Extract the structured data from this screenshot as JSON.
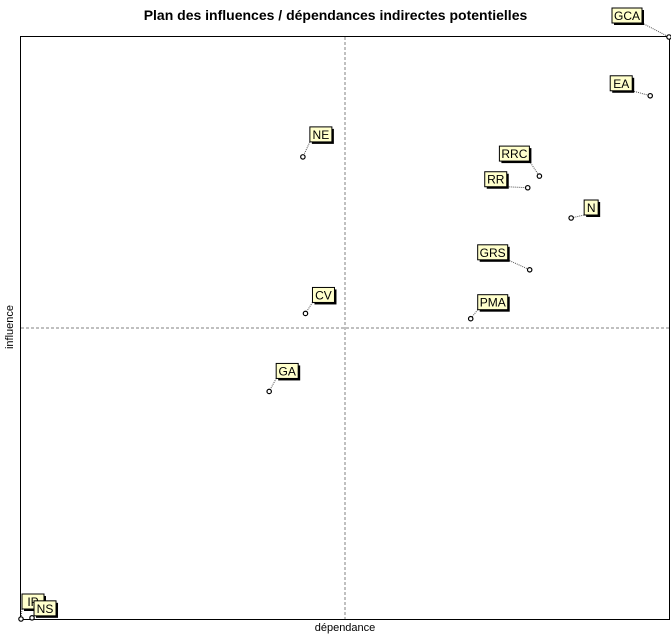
{
  "chart_data": {
    "type": "scatter",
    "title": "Plan des influences / dépendances indirectes potentielles",
    "xlabel": "dépendance",
    "ylabel": "influence",
    "xlim": [
      0,
      100
    ],
    "ylim": [
      0,
      100
    ],
    "grid": false,
    "crosshair": {
      "x": 50,
      "y": 50
    },
    "colors": {
      "label_fill": "#ffffcc",
      "label_border": "#000000",
      "point": "#000000",
      "dashed_lines": "#808080"
    },
    "points": [
      {
        "label": "GCA",
        "x": 100.0,
        "y": 100.0
      },
      {
        "label": "EA",
        "x": 97.1,
        "y": 89.9
      },
      {
        "label": "NE",
        "x": 43.5,
        "y": 79.4
      },
      {
        "label": "RRC",
        "x": 80.0,
        "y": 76.1
      },
      {
        "label": "RR",
        "x": 78.2,
        "y": 74.1
      },
      {
        "label": "N",
        "x": 84.9,
        "y": 68.9
      },
      {
        "label": "GRS",
        "x": 78.5,
        "y": 60.0
      },
      {
        "label": "CV",
        "x": 43.9,
        "y": 52.5
      },
      {
        "label": "PMA",
        "x": 69.4,
        "y": 51.6
      },
      {
        "label": "GA",
        "x": 38.3,
        "y": 39.1
      },
      {
        "label": "IP",
        "x": 0.0,
        "y": 0.0
      },
      {
        "label": "NS",
        "x": 1.7,
        "y": 0.2
      }
    ]
  }
}
